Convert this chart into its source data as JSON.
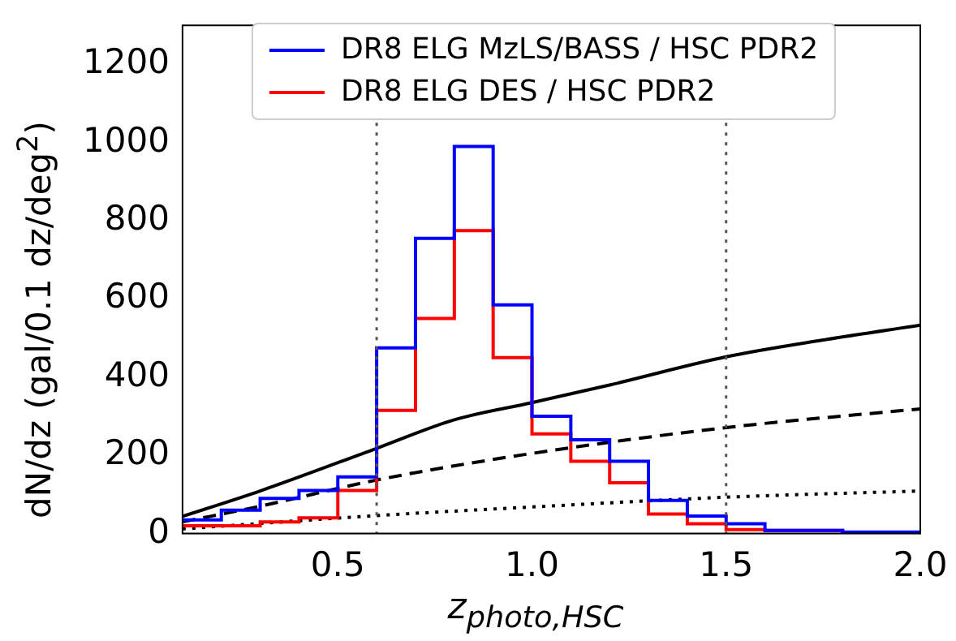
{
  "chart_data": {
    "type": "histogram",
    "xlabel": "z$_{photo,HSC}$",
    "ylabel": "dN/dz (gal/0.1 dz/deg$^{2}$)",
    "bins": [
      0.1,
      0.2,
      0.3,
      0.4,
      0.5,
      0.6,
      0.7,
      0.8,
      0.9,
      1.0,
      1.1,
      1.2,
      1.3,
      1.4,
      1.5,
      1.6,
      1.7,
      1.8,
      1.9,
      2.0
    ],
    "series": [
      {
        "name": "DR8 ELG MzLS/BASS / HSC PDR2",
        "color": "#0000ff",
        "values": [
          35,
          60,
          90,
          110,
          145,
          475,
          755,
          990,
          585,
          300,
          240,
          185,
          85,
          45,
          25,
          8,
          8,
          4,
          4
        ]
      },
      {
        "name": "DR8 ELG DES / HSC PDR2",
        "color": "#ff0000",
        "values": [
          20,
          20,
          30,
          40,
          110,
          315,
          550,
          775,
          450,
          255,
          185,
          130,
          50,
          25,
          10,
          8,
          8,
          0,
          0
        ]
      },
      {
        "type": "line",
        "color": "#000000",
        "line_style": "solid",
        "x": [
          0.1,
          0.3,
          0.6,
          0.8,
          1.0,
          1.2,
          1.5,
          1.75,
          2.0
        ],
        "values": [
          44,
          109,
          218,
          291,
          335,
          380,
          452,
          495,
          533
        ]
      },
      {
        "type": "line",
        "color": "#000000",
        "line_style": "dashed",
        "x": [
          0.1,
          0.3,
          0.6,
          1.0,
          1.5,
          2.0
        ],
        "values": [
          30,
          70,
          137,
          205,
          271,
          319
        ]
      },
      {
        "type": "line",
        "color": "#000000",
        "line_style": "dotted",
        "x": [
          0.1,
          0.6,
          1.0,
          1.5,
          2.0
        ],
        "values": [
          12,
          46,
          68,
          93,
          109
        ]
      }
    ],
    "ref_lines": [
      {
        "axis": "x",
        "value": 0.6,
        "color": "#555555",
        "line_style": "dotted"
      },
      {
        "axis": "x",
        "value": 1.5,
        "color": "#555555",
        "line_style": "dotted"
      }
    ],
    "xlim": [
      0.1,
      2.0
    ],
    "xticks": [
      0.5,
      {
        "value": 1.0,
        "label": "1.0"
      },
      1.5,
      {
        "value": 2.0,
        "label": "2.0"
      }
    ],
    "ylim": [
      0,
      1300
    ],
    "yticks": [
      0,
      200,
      400,
      600,
      800,
      1000,
      1200
    ],
    "grid": false,
    "legend": "top"
  }
}
